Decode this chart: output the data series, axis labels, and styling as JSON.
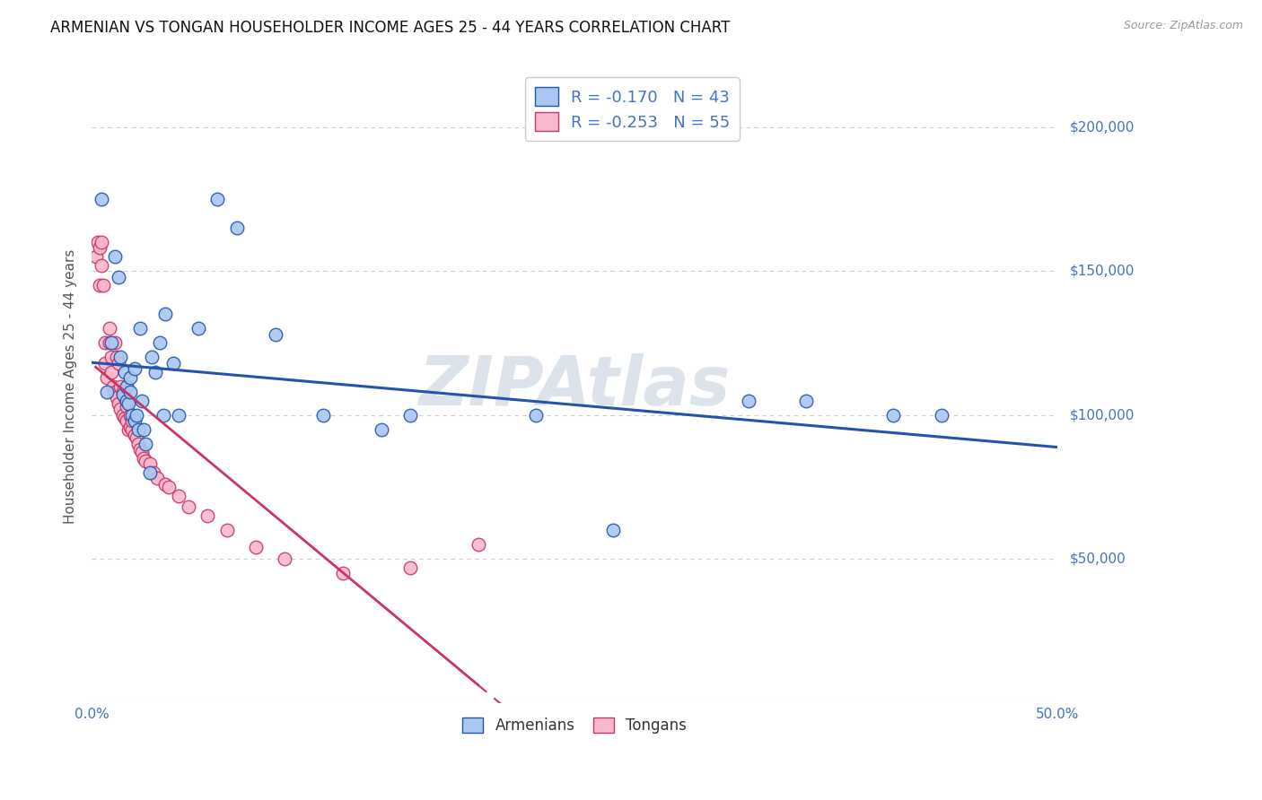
{
  "title": "ARMENIAN VS TONGAN HOUSEHOLDER INCOME AGES 25 - 44 YEARS CORRELATION CHART",
  "source": "Source: ZipAtlas.com",
  "ylabel": "Householder Income Ages 25 - 44 years",
  "xlim": [
    0.0,
    0.5
  ],
  "ylim": [
    0,
    220000
  ],
  "yticks": [
    0,
    50000,
    100000,
    150000,
    200000
  ],
  "ytick_labels": [
    "",
    "$50,000",
    "$100,000",
    "$150,000",
    "$200,000"
  ],
  "xticks": [
    0.0,
    0.05,
    0.1,
    0.15,
    0.2,
    0.25,
    0.3,
    0.35,
    0.4,
    0.45,
    0.5
  ],
  "armenian_R": "-0.170",
  "armenian_N": "43",
  "tongan_R": "-0.253",
  "tongan_N": "55",
  "armenian_color": "#A8C8F0",
  "tongan_color": "#F8B8CC",
  "armenian_line_color": "#2255AA",
  "tongan_line_color": "#CC3366",
  "background_color": "#FFFFFF",
  "grid_color": "#CCCCCC",
  "watermark_text": "ZIPAtlas",
  "watermark_color": "#AABBCC",
  "title_fontsize": 12,
  "label_fontsize": 11,
  "armenians_scatter_x": [
    0.005,
    0.008,
    0.01,
    0.012,
    0.014,
    0.015,
    0.016,
    0.017,
    0.018,
    0.018,
    0.019,
    0.02,
    0.02,
    0.021,
    0.022,
    0.022,
    0.023,
    0.024,
    0.025,
    0.026,
    0.027,
    0.028,
    0.03,
    0.031,
    0.033,
    0.035,
    0.037,
    0.038,
    0.042,
    0.045,
    0.055,
    0.065,
    0.075,
    0.095,
    0.12,
    0.15,
    0.165,
    0.23,
    0.27,
    0.34,
    0.37,
    0.415,
    0.44
  ],
  "armenians_scatter_y": [
    175000,
    108000,
    125000,
    155000,
    148000,
    120000,
    107000,
    115000,
    110000,
    105000,
    104000,
    113000,
    108000,
    100000,
    98000,
    116000,
    100000,
    95000,
    130000,
    105000,
    95000,
    90000,
    80000,
    120000,
    115000,
    125000,
    100000,
    135000,
    118000,
    100000,
    130000,
    175000,
    165000,
    128000,
    100000,
    95000,
    100000,
    100000,
    60000,
    105000,
    105000,
    100000,
    100000
  ],
  "tongans_scatter_x": [
    0.002,
    0.003,
    0.004,
    0.004,
    0.005,
    0.005,
    0.006,
    0.007,
    0.007,
    0.008,
    0.009,
    0.009,
    0.01,
    0.01,
    0.011,
    0.012,
    0.012,
    0.013,
    0.013,
    0.014,
    0.014,
    0.015,
    0.015,
    0.016,
    0.016,
    0.017,
    0.017,
    0.018,
    0.018,
    0.019,
    0.02,
    0.02,
    0.021,
    0.021,
    0.022,
    0.023,
    0.024,
    0.025,
    0.026,
    0.027,
    0.028,
    0.03,
    0.032,
    0.034,
    0.038,
    0.04,
    0.045,
    0.05,
    0.06,
    0.07,
    0.085,
    0.1,
    0.13,
    0.165,
    0.2
  ],
  "tongans_scatter_y": [
    155000,
    160000,
    158000,
    145000,
    160000,
    152000,
    145000,
    125000,
    118000,
    113000,
    130000,
    125000,
    120000,
    115000,
    110000,
    108000,
    125000,
    106000,
    120000,
    104000,
    118000,
    102000,
    110000,
    100000,
    108000,
    99000,
    106000,
    98000,
    103000,
    95000,
    96000,
    100000,
    95000,
    98000,
    93000,
    92000,
    90000,
    88000,
    87000,
    85000,
    84000,
    83000,
    80000,
    78000,
    76000,
    75000,
    72000,
    68000,
    65000,
    60000,
    54000,
    50000,
    45000,
    47000,
    55000
  ]
}
